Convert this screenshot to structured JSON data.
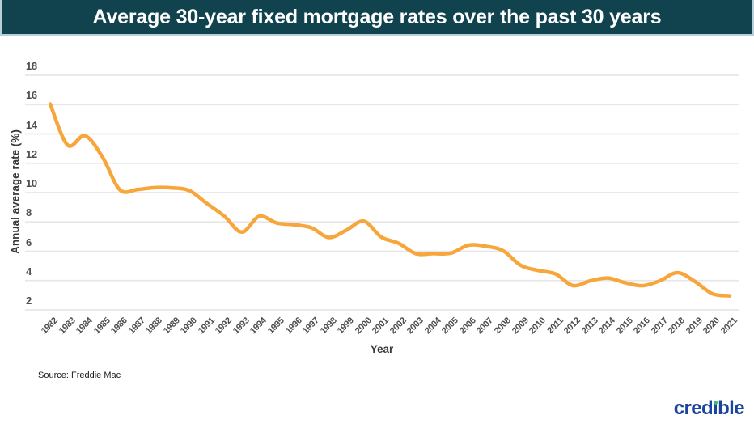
{
  "header": {
    "title": "Average 30-year fixed mortgage rates over the past 30 years",
    "bg_color": "#11434F",
    "border_color": "#b7cfd9"
  },
  "chart_data": {
    "type": "line",
    "title": "Average 30-year fixed mortgage rates over the past 30 years",
    "xlabel": "Year",
    "ylabel": "Annual average rate (%)",
    "x": [
      1982,
      1983,
      1984,
      1985,
      1986,
      1987,
      1988,
      1989,
      1990,
      1991,
      1992,
      1993,
      1994,
      1995,
      1996,
      1997,
      1998,
      1999,
      2000,
      2001,
      2002,
      2003,
      2004,
      2005,
      2006,
      2007,
      2008,
      2009,
      2010,
      2011,
      2012,
      2013,
      2014,
      2015,
      2016,
      2017,
      2018,
      2019,
      2020,
      2021
    ],
    "series": [
      {
        "name": "30-year fixed mortgage rate",
        "values": [
          16.04,
          13.24,
          13.88,
          12.43,
          10.19,
          10.21,
          10.34,
          10.32,
          10.13,
          9.25,
          8.39,
          7.31,
          8.38,
          7.93,
          7.81,
          7.6,
          6.94,
          7.44,
          8.05,
          6.97,
          6.54,
          5.83,
          5.84,
          5.87,
          6.41,
          6.34,
          6.03,
          5.04,
          4.69,
          4.45,
          3.66,
          3.98,
          4.17,
          3.85,
          3.65,
          3.99,
          4.54,
          3.94,
          3.1,
          2.96
        ]
      }
    ],
    "ylim": [
      2,
      18
    ],
    "yticks": [
      2,
      4,
      6,
      8,
      10,
      12,
      14,
      16,
      18
    ],
    "grid": true,
    "legend": "none",
    "line_color": "#F7A63B",
    "grid_color": "#e7e7e7"
  },
  "footer": {
    "source_prefix": "Source:",
    "source_link": "Freddie Mac"
  },
  "logo": {
    "text": "credible",
    "color": "#1B449E",
    "dot_color": "#3CB879"
  }
}
